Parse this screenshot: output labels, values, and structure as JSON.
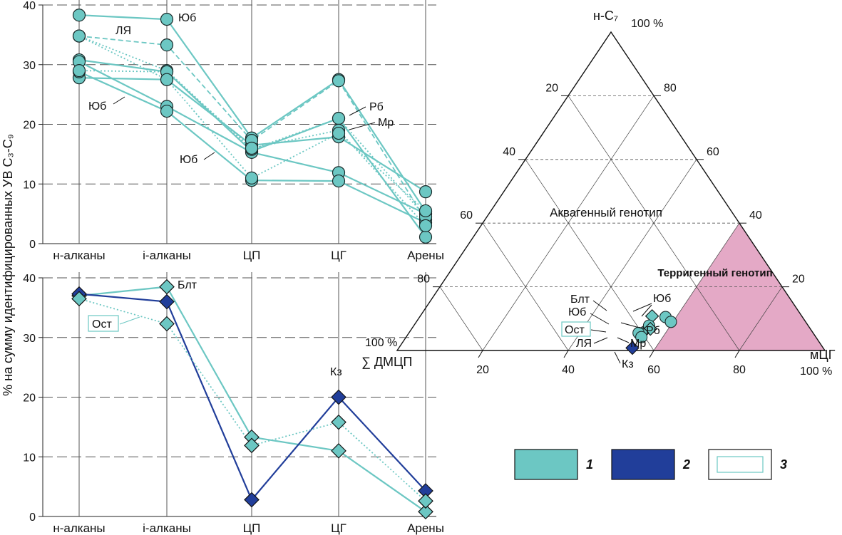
{
  "colors": {
    "series_teal": "#6cc7c3",
    "teal_dark": "#2a8f8b",
    "series_navy": "#213e9a",
    "terrigenous_fill": "#e4a9c6",
    "grid": "#555555",
    "axis": "#222222"
  },
  "ylabel": "% на сумму идентифицированных УВ С₃-С₉",
  "chart_data": [
    {
      "type": "line",
      "panel": "top",
      "categories": [
        "н-алканы",
        "i-алканы",
        "ЦП",
        "ЦГ",
        "Арены"
      ],
      "ylim": [
        0,
        40
      ],
      "yticks": [
        "0",
        "10",
        "20",
        "30",
        "40"
      ],
      "grid": true,
      "series": [
        {
          "values": [
            38.3,
            37.6,
            17.7,
            27.5,
            5.4
          ],
          "style": "solid",
          "legend_group": "1"
        },
        {
          "values": [
            30.8,
            28.8,
            15.5,
            21.0,
            1.1
          ],
          "style": "solid",
          "legend_group": "1"
        },
        {
          "values": [
            27.8,
            27.5,
            16.5,
            17.9,
            8.7
          ],
          "style": "solid",
          "legend_group": "1"
        },
        {
          "values": [
            30.5,
            23.0,
            15.3,
            11.9,
            5.0
          ],
          "style": "solid",
          "legend_group": "1"
        },
        {
          "values": [
            28.8,
            22.2,
            10.6,
            10.5,
            3.5
          ],
          "style": "solid",
          "legend_group": "1"
        },
        {
          "values": [
            34.8,
            33.3,
            17.3,
            27.3,
            4.0
          ],
          "style": "dashed",
          "legend_group": "3"
        },
        {
          "values": [
            34.8,
            29.0,
            15.8,
            21.0,
            4.5
          ],
          "style": "dotted",
          "legend_group": "3"
        },
        {
          "values": [
            29.0,
            28.8,
            16.0,
            19.0,
            3.0
          ],
          "style": "dotted",
          "legend_group": "3"
        },
        {
          "values": [
            34.8,
            27.5,
            11.0,
            18.5,
            5.5
          ],
          "style": "dotted",
          "legend_group": "3"
        }
      ],
      "labels": [
        "ЛЯ",
        "Юб",
        "Юб",
        "Юб",
        "Рб",
        "Мр"
      ]
    },
    {
      "type": "line",
      "panel": "bottom",
      "categories": [
        "н-алканы",
        "i-алканы",
        "ЦП",
        "ЦГ",
        "Арены"
      ],
      "ylim": [
        0,
        40
      ],
      "yticks": [
        "0",
        "10",
        "20",
        "30",
        "40"
      ],
      "grid": true,
      "series": [
        {
          "values": [
            37.0,
            38.5,
            13.3,
            11.0,
            0.8
          ],
          "style": "solid",
          "legend_group": "1"
        },
        {
          "values": [
            37.3,
            36.0,
            2.8,
            20.0,
            4.3
          ],
          "style": "solid",
          "legend_group": "2"
        },
        {
          "values": [
            36.5,
            32.3,
            11.9,
            15.8,
            2.6
          ],
          "style": "dotted",
          "legend_group": "3"
        }
      ],
      "labels": [
        "Блт",
        "Ост",
        "Кз"
      ]
    },
    {
      "type": "scatter",
      "subtype": "ternary",
      "axes": {
        "top": "н-С₇",
        "left": "∑ ДМЦП",
        "right": "мЦГ",
        "top_pct": "100 %",
        "left_pct": "100 %",
        "right_pct": "100 %"
      },
      "ticks": [
        "20",
        "40",
        "60",
        "80"
      ],
      "ticks_left": [
        "20",
        "40",
        "60",
        "80"
      ],
      "ticks_right": [
        "80",
        "60",
        "40",
        "20"
      ],
      "ticks_bottom": [
        "20",
        "40",
        "60",
        "80"
      ],
      "grid": true,
      "regions": [
        "Аквагенный генотип",
        "Терригенный генотип"
      ],
      "points": [
        {
          "label": "Юб",
          "mcg": 57.5,
          "n_c7": 10.5,
          "marker": "circle",
          "group": "1"
        },
        {
          "label": "Юб",
          "mcg": 59.5,
          "n_c7": 9.0,
          "marker": "circle",
          "group": "1"
        },
        {
          "label": "Блт",
          "mcg": 54.2,
          "n_c7": 10.8,
          "marker": "diamond",
          "group": "1"
        },
        {
          "label": "Юб",
          "mcg": 55.0,
          "n_c7": 7.8,
          "marker": "circle",
          "group": "1"
        },
        {
          "label": "Рб",
          "mcg": 55.8,
          "n_c7": 6.8,
          "marker": "diamond",
          "group": "1"
        },
        {
          "label": "Ост",
          "mcg": 54.6,
          "n_c7": 5.5,
          "marker": "diamond",
          "group": "3"
        },
        {
          "label": "ЛЯ",
          "mcg": 53.7,
          "n_c7": 5.5,
          "marker": "circle",
          "group": "1"
        },
        {
          "label": "Мр",
          "mcg": 55.0,
          "n_c7": 4.2,
          "marker": "circle",
          "group": "1"
        },
        {
          "label": "Кз",
          "mcg": 54.6,
          "n_c7": 0.8,
          "marker": "diamond",
          "group": "2"
        }
      ]
    }
  ],
  "legend": [
    {
      "id": "1",
      "label": "1",
      "swatch": "teal"
    },
    {
      "id": "2",
      "label": "2",
      "swatch": "navy"
    },
    {
      "id": "3",
      "label": "3",
      "swatch": "outline"
    }
  ]
}
